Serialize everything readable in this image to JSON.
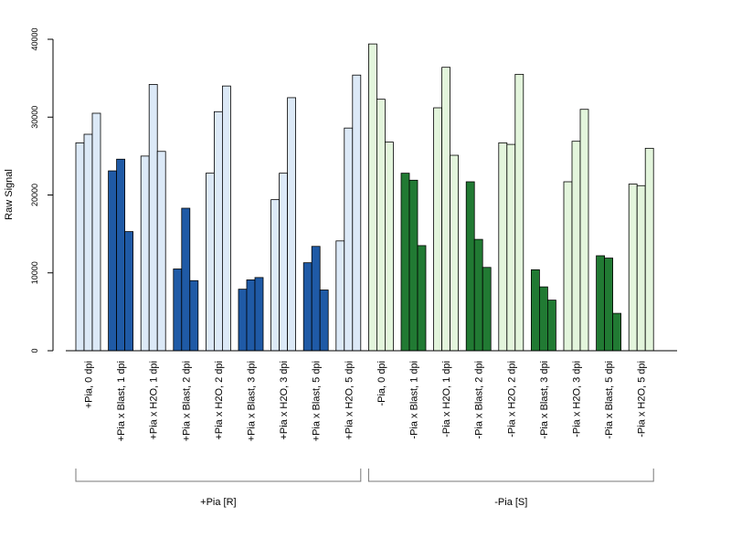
{
  "chart_data": {
    "type": "bar",
    "ylabel": "Raw Signal",
    "ylim": [
      0,
      40000
    ],
    "yticks": [
      0,
      10000,
      20000,
      30000,
      40000
    ],
    "grid": false,
    "categories": [
      "+Pia, 0 dpi",
      "+Pia x Blast, 1 dpi",
      "+Pia x H2O, 1 dpi",
      "+Pia x Blast, 2 dpi",
      "+Pia x H2O, 2 dpi",
      "+Pia x Blast, 3 dpi",
      "+Pia x H2O, 3 dpi",
      "+Pia x Blast, 5 dpi",
      "+Pia x H2O, 5 dpi",
      "-Pia, 0 dpi",
      "-Pia x Blast, 1 dpi",
      "-Pia x H2O, 1 dpi",
      "-Pia x Blast, 2 dpi",
      "-Pia x H2O, 2 dpi",
      "-Pia x Blast, 3 dpi",
      "-Pia x H2O, 3 dpi",
      "-Pia x Blast, 5 dpi",
      "-Pia x H2O, 5 dpi"
    ],
    "replicates": [
      [
        26700,
        27800,
        30500
      ],
      [
        23100,
        24600,
        15300
      ],
      [
        25000,
        34200,
        25600
      ],
      [
        10500,
        18300,
        9000
      ],
      [
        22800,
        30700,
        34000
      ],
      [
        7900,
        9100,
        9400
      ],
      [
        19400,
        22800,
        32500
      ],
      [
        11300,
        13400,
        7800
      ],
      [
        14100,
        28600,
        35400
      ],
      [
        39400,
        32300,
        26800
      ],
      [
        22800,
        21900,
        13500
      ],
      [
        31200,
        36400,
        25100
      ],
      [
        21700,
        14300,
        10700
      ],
      [
        26700,
        26500,
        35500
      ],
      [
        10400,
        8200,
        6500
      ],
      [
        21700,
        26900,
        31000
      ],
      [
        12200,
        11900,
        4800
      ],
      [
        21400,
        21200,
        26000
      ]
    ],
    "bar_colors": [
      "#dce9f7",
      "#1f5aa6",
      "#dce9f7",
      "#1f5aa6",
      "#dce9f7",
      "#1f5aa6",
      "#dce9f7",
      "#1f5aa6",
      "#dce9f7",
      "#e3f5dc",
      "#217a33",
      "#e3f5dc",
      "#217a33",
      "#e3f5dc",
      "#217a33",
      "#e3f5dc",
      "#217a33",
      "#e3f5dc"
    ],
    "groups": [
      {
        "label": "+Pia [R]",
        "from": 0,
        "to": 8
      },
      {
        "label": "-Pia [S]",
        "from": 9,
        "to": 17
      }
    ]
  }
}
